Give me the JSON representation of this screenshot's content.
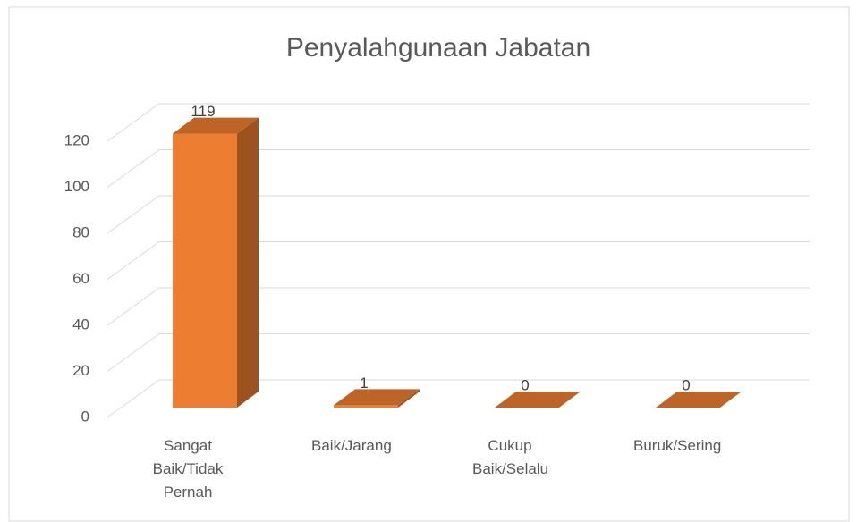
{
  "chart_data": {
    "type": "bar3d",
    "title": "Penyalahgunaan Jabatan",
    "categories": [
      "Sangat Baik/Tidak Pernah",
      "Baik/Jarang",
      "Cukup Baik/Selalu",
      "Buruk/Sering"
    ],
    "values": [
      119,
      1,
      0,
      0
    ],
    "color": "#ed7d31",
    "ylim": [
      0,
      120
    ],
    "yticks": [
      0,
      20,
      40,
      60,
      80,
      100,
      120
    ],
    "grid": true
  }
}
